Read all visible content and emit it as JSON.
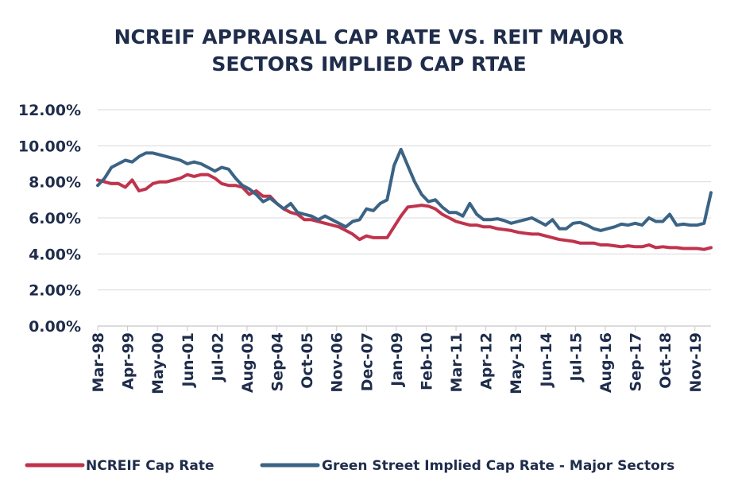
{
  "chart_data": {
    "type": "line",
    "title": "NCREIF APPRAISAL CAP RATE VS. REIT MAJOR SECTORS IMPLIED CAP RTAE",
    "title_lines": [
      "NCREIF APPRAISAL CAP RATE VS. REIT MAJOR",
      "SECTORS IMPLIED CAP RTAE"
    ],
    "xlabel": "",
    "ylabel": "",
    "ylim": [
      0,
      12
    ],
    "y_ticks": [
      "0.00%",
      "2.00%",
      "4.00%",
      "6.00%",
      "8.00%",
      "10.00%",
      "12.00%"
    ],
    "x_tick_labels": [
      "Mar-98",
      "Apr-99",
      "May-00",
      "Jun-01",
      "Jul-02",
      "Aug-03",
      "Sep-04",
      "Oct-05",
      "Nov-06",
      "Dec-07",
      "Jan-09",
      "Feb-10",
      "Mar-11",
      "Apr-12",
      "May-13",
      "Jun-14",
      "Jul-15",
      "Aug-16",
      "Sep-17",
      "Oct-18",
      "Nov-19"
    ],
    "x_range": [
      "Mar-98",
      "Jun-20"
    ],
    "grid": true,
    "legend_position": "bottom",
    "series": [
      {
        "name": "NCREIF Cap Rate",
        "color": "#c0334d",
        "x": [
          "Mar-98",
          "Jun-98",
          "Sep-98",
          "Dec-98",
          "Mar-99",
          "Jun-99",
          "Sep-99",
          "Dec-99",
          "Mar-00",
          "Jun-00",
          "Sep-00",
          "Dec-00",
          "Mar-01",
          "Jun-01",
          "Sep-01",
          "Dec-01",
          "Mar-02",
          "Jun-02",
          "Sep-02",
          "Dec-02",
          "Mar-03",
          "Jun-03",
          "Sep-03",
          "Dec-03",
          "Mar-04",
          "Jun-04",
          "Sep-04",
          "Dec-04",
          "Mar-05",
          "Jun-05",
          "Sep-05",
          "Dec-05",
          "Mar-06",
          "Jun-06",
          "Sep-06",
          "Dec-06",
          "Mar-07",
          "Jun-07",
          "Sep-07",
          "Dec-07",
          "Mar-08",
          "Jun-08",
          "Sep-08",
          "Dec-08",
          "Mar-09",
          "Jun-09",
          "Sep-09",
          "Dec-09",
          "Mar-10",
          "Jun-10",
          "Sep-10",
          "Dec-10",
          "Mar-11",
          "Jun-11",
          "Sep-11",
          "Dec-11",
          "Mar-12",
          "Jun-12",
          "Sep-12",
          "Dec-12",
          "Mar-13",
          "Jun-13",
          "Sep-13",
          "Dec-13",
          "Mar-14",
          "Jun-14",
          "Sep-14",
          "Dec-14",
          "Mar-15",
          "Jun-15",
          "Sep-15",
          "Dec-15",
          "Mar-16",
          "Jun-16",
          "Sep-16",
          "Dec-16",
          "Mar-17",
          "Jun-17",
          "Sep-17",
          "Dec-17",
          "Mar-18",
          "Jun-18",
          "Sep-18",
          "Dec-18",
          "Mar-19",
          "Jun-19",
          "Sep-19",
          "Dec-19",
          "Mar-20",
          "Jun-20"
        ],
        "values": [
          8.1,
          8.0,
          7.9,
          7.9,
          7.7,
          8.1,
          7.5,
          7.6,
          7.9,
          8.0,
          8.0,
          8.1,
          8.2,
          8.4,
          8.3,
          8.4,
          8.4,
          8.2,
          7.9,
          7.8,
          7.8,
          7.7,
          7.3,
          7.5,
          7.2,
          7.2,
          6.8,
          6.5,
          6.3,
          6.2,
          5.9,
          5.9,
          5.8,
          5.7,
          5.6,
          5.5,
          5.3,
          5.1,
          4.8,
          5.0,
          4.9,
          4.9,
          4.9,
          5.5,
          6.1,
          6.6,
          6.65,
          6.7,
          6.65,
          6.5,
          6.2,
          6.0,
          5.8,
          5.7,
          5.6,
          5.6,
          5.5,
          5.5,
          5.4,
          5.35,
          5.3,
          5.2,
          5.15,
          5.1,
          5.1,
          5.0,
          4.9,
          4.8,
          4.75,
          4.7,
          4.6,
          4.6,
          4.6,
          4.5,
          4.5,
          4.45,
          4.4,
          4.45,
          4.4,
          4.4,
          4.5,
          4.35,
          4.4,
          4.35,
          4.35,
          4.3,
          4.3,
          4.3,
          4.25,
          4.35
        ]
      },
      {
        "name": "Green Street Implied Cap Rate - Major Sectors",
        "color": "#3b6384",
        "x": [
          "Mar-98",
          "Jun-98",
          "Sep-98",
          "Dec-98",
          "Mar-99",
          "Jun-99",
          "Sep-99",
          "Dec-99",
          "Mar-00",
          "Jun-00",
          "Sep-00",
          "Dec-00",
          "Mar-01",
          "Jun-01",
          "Sep-01",
          "Dec-01",
          "Mar-02",
          "Jun-02",
          "Sep-02",
          "Dec-02",
          "Mar-03",
          "Jun-03",
          "Sep-03",
          "Dec-03",
          "Mar-04",
          "Jun-04",
          "Sep-04",
          "Dec-04",
          "Mar-05",
          "Jun-05",
          "Sep-05",
          "Dec-05",
          "Mar-06",
          "Jun-06",
          "Sep-06",
          "Dec-06",
          "Mar-07",
          "Jun-07",
          "Sep-07",
          "Dec-07",
          "Mar-08",
          "Jun-08",
          "Sep-08",
          "Dec-08",
          "Mar-09",
          "Jun-09",
          "Sep-09",
          "Dec-09",
          "Mar-10",
          "Jun-10",
          "Sep-10",
          "Dec-10",
          "Mar-11",
          "Jun-11",
          "Sep-11",
          "Dec-11",
          "Mar-12",
          "Jun-12",
          "Sep-12",
          "Dec-12",
          "Mar-13",
          "Jun-13",
          "Sep-13",
          "Dec-13",
          "Mar-14",
          "Jun-14",
          "Sep-14",
          "Dec-14",
          "Mar-15",
          "Jun-15",
          "Sep-15",
          "Dec-15",
          "Mar-16",
          "Jun-16",
          "Sep-16",
          "Dec-16",
          "Mar-17",
          "Jun-17",
          "Sep-17",
          "Dec-17",
          "Mar-18",
          "Jun-18",
          "Sep-18",
          "Dec-18",
          "Mar-19",
          "Jun-19",
          "Sep-19",
          "Dec-19",
          "Mar-20",
          "Jun-20"
        ],
        "values": [
          7.8,
          8.2,
          8.8,
          9.0,
          9.2,
          9.1,
          9.4,
          9.6,
          9.6,
          9.5,
          9.4,
          9.3,
          9.2,
          9.0,
          9.1,
          9.0,
          8.8,
          8.6,
          8.8,
          8.7,
          8.2,
          7.8,
          7.6,
          7.3,
          6.9,
          7.1,
          6.8,
          6.5,
          6.8,
          6.3,
          6.2,
          6.1,
          5.9,
          6.1,
          5.9,
          5.7,
          5.5,
          5.8,
          5.9,
          6.5,
          6.4,
          6.8,
          7.0,
          8.9,
          9.8,
          8.9,
          8.0,
          7.3,
          6.9,
          7.0,
          6.6,
          6.3,
          6.3,
          6.1,
          6.8,
          6.2,
          5.9,
          5.9,
          5.95,
          5.85,
          5.7,
          5.8,
          5.9,
          6.0,
          5.8,
          5.6,
          5.9,
          5.4,
          5.4,
          5.7,
          5.75,
          5.6,
          5.4,
          5.3,
          5.4,
          5.5,
          5.65,
          5.6,
          5.7,
          5.6,
          6.0,
          5.8,
          5.8,
          6.2,
          5.6,
          5.65,
          5.6,
          5.6,
          5.7,
          7.4
        ]
      }
    ]
  }
}
